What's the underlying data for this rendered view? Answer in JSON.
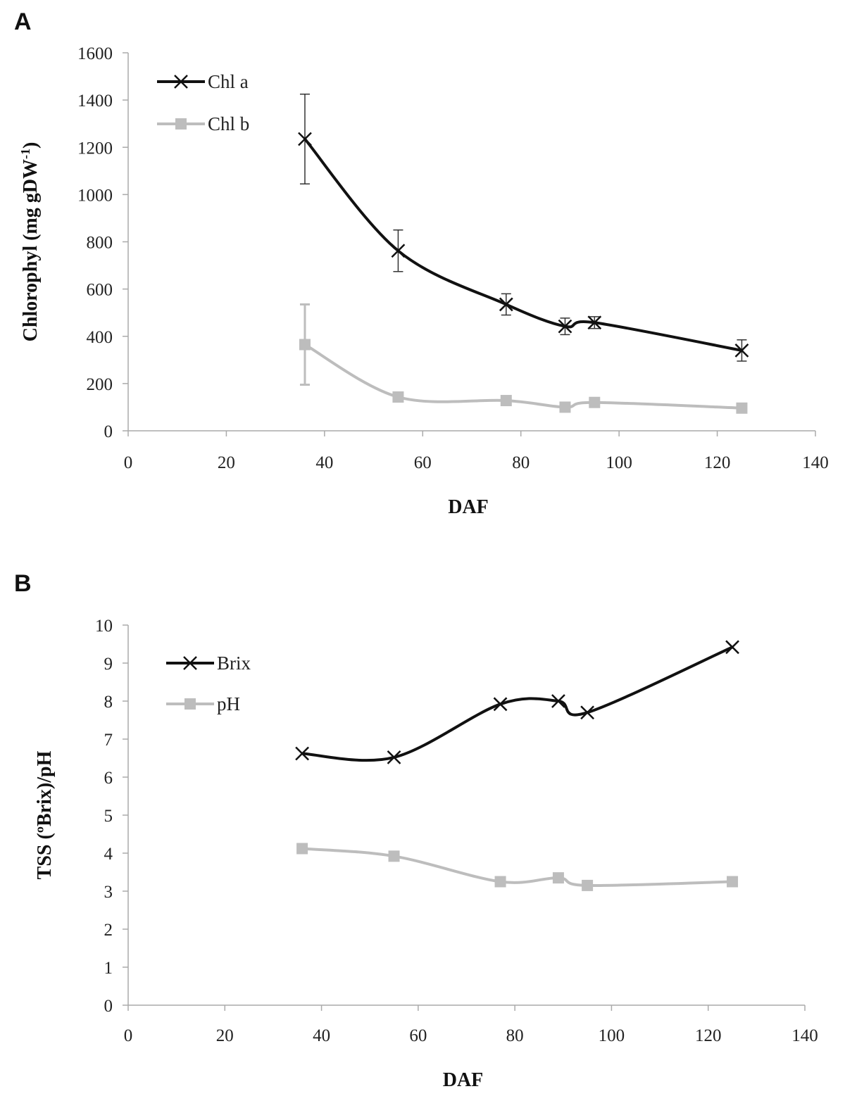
{
  "chart_data": [
    {
      "panel_label": "A",
      "type": "line",
      "xlabel": "DAF",
      "ylabel": "Chlorophyl  (mg gDW",
      "ylabel_superscript": "-1",
      "ylabel_suffix": ")",
      "xlim": [
        0,
        140
      ],
      "ylim": [
        0,
        1600
      ],
      "xticks": [
        "0",
        "20",
        "40",
        "60",
        "80",
        "100",
        "120",
        "140"
      ],
      "yticks": [
        "0",
        "200",
        "400",
        "600",
        "800",
        "1000",
        "1200",
        "1400",
        "1600"
      ],
      "legend_position": "top-left",
      "series": [
        {
          "name": "Chl a",
          "color": "#111111",
          "marker": "x",
          "x": [
            36,
            55,
            77,
            89,
            95,
            125
          ],
          "y": [
            1235,
            762,
            535,
            442,
            458,
            340
          ],
          "error": [
            190,
            88,
            45,
            35,
            25,
            45
          ]
        },
        {
          "name": "Chl b",
          "color": "#bdbdbd",
          "marker": "square",
          "x": [
            36,
            55,
            77,
            89,
            95,
            125
          ],
          "y": [
            365,
            143,
            128,
            100,
            120,
            96
          ],
          "error": [
            170,
            15,
            15,
            12,
            15,
            10
          ]
        }
      ]
    },
    {
      "panel_label": "B",
      "type": "line",
      "xlabel": "DAF",
      "ylabel": "TSS (ºBrix)/pH",
      "xlim": [
        0,
        140
      ],
      "ylim": [
        0,
        10
      ],
      "xticks": [
        "0",
        "20",
        "40",
        "60",
        "80",
        "100",
        "120",
        "140"
      ],
      "yticks": [
        "0",
        "1",
        "2",
        "3",
        "4",
        "5",
        "6",
        "7",
        "8",
        "9",
        "10"
      ],
      "legend_position": "top-left",
      "series": [
        {
          "name": "Brix",
          "color": "#111111",
          "marker": "x",
          "x": [
            36,
            55,
            77,
            89,
            95,
            125
          ],
          "y": [
            6.62,
            6.52,
            7.92,
            8.0,
            7.7,
            9.42
          ]
        },
        {
          "name": "pH",
          "color": "#bdbdbd",
          "marker": "square",
          "x": [
            36,
            55,
            77,
            89,
            95,
            125
          ],
          "y": [
            4.12,
            3.92,
            3.25,
            3.35,
            3.15,
            3.25
          ]
        }
      ]
    }
  ]
}
